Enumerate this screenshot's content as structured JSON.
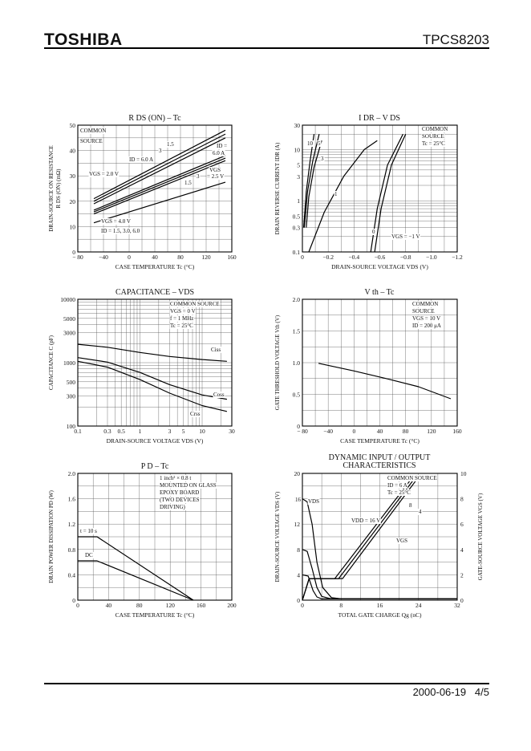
{
  "header": {
    "brand": "TOSHIBA",
    "part_number": "TPCS8203"
  },
  "footer": {
    "date": "2000-06-19",
    "page": "4/5"
  },
  "chart_data": [
    {
      "id": "rds",
      "type": "line",
      "title": "R DS (ON) – Tc",
      "xlabel": "CASE TEMPERATURE  Tc  (°C)",
      "ylabel": [
        "DRAIN-SOURCE ON RESISTANCE",
        "R DS (ON)  (mΩ)"
      ],
      "xlim": [
        -80,
        160
      ],
      "ylim": [
        0,
        50
      ],
      "xticks": [
        -80,
        -40,
        0,
        40,
        80,
        120,
        160
      ],
      "xtick_labels": [
        "− 80",
        "−40",
        "0",
        "40",
        "80",
        "120",
        "160"
      ],
      "yticks": [
        0,
        10,
        20,
        30,
        40,
        50
      ],
      "ytick_labels": [
        "0",
        "10",
        "20",
        "30",
        "40",
        "50"
      ],
      "series": [
        {
          "name": "VGS = 2.0 V, ID = 6.0 A",
          "x": [
            -55,
            150
          ],
          "y": [
            21,
            48
          ]
        },
        {
          "name": "VGS = 2.0 V, ID = 3",
          "x": [
            -55,
            150
          ],
          "y": [
            20,
            46.5
          ]
        },
        {
          "name": "VGS = 2.0 V, ID = 1.5",
          "x": [
            -55,
            150
          ],
          "y": [
            19,
            45
          ]
        },
        {
          "name": "VGS = 2.5 V, ID = 6.0 A",
          "x": [
            -55,
            150
          ],
          "y": [
            16.5,
            38
          ]
        },
        {
          "name": "VGS = 2.5 V, ID = 3",
          "x": [
            -55,
            150
          ],
          "y": [
            15.8,
            37
          ]
        },
        {
          "name": "VGS = 2.5 V, ID = 1.5",
          "x": [
            -55,
            150
          ],
          "y": [
            15,
            36
          ]
        },
        {
          "name": "VGS = 4.0 V",
          "x": [
            -55,
            150
          ],
          "y": [
            11.5,
            27.5
          ]
        }
      ],
      "annotations": [
        "COMMON",
        "SOURCE",
        "1.5",
        "3",
        "ID = 6.0 A",
        "ID =",
        "6.0 A",
        "3",
        "1.5",
        "VGS = 2.0 V",
        "VGS",
        "= 2.5 V",
        "VGS = 4.0 V",
        "ID = 1.5, 3.0, 6.0"
      ]
    },
    {
      "id": "idr",
      "type": "line",
      "title": "I DR – V DS",
      "xlabel": "DRAIN-SOURCE VOLTAGE  VDS  (V)",
      "ylabel": [
        "DRAIN REVERSE CURRENT  IDR  (A)"
      ],
      "xlim": [
        0,
        -1.2
      ],
      "ylim": [
        0.1,
        30
      ],
      "yscale": "log",
      "xticks": [
        0,
        -0.2,
        -0.4,
        -0.6,
        -0.8,
        -1.0,
        -1.2
      ],
      "xtick_labels": [
        "0",
        "−0.2",
        "−0.4",
        "−0.6",
        "−0.8",
        "−1.0",
        "−1.2"
      ],
      "yticks": [
        0.1,
        0.3,
        0.5,
        1,
        3,
        5,
        10,
        30
      ],
      "ytick_labels": [
        "0.1",
        "0.3",
        "0.5",
        "1",
        "3",
        "5",
        "10",
        "30"
      ],
      "series": [
        {
          "name": "VGS = 10 V",
          "x": [
            -0.01,
            -0.03,
            -0.06,
            -0.09
          ],
          "y": [
            0.3,
            1.5,
            6,
            20
          ]
        },
        {
          "name": "VGS = 5 V",
          "x": [
            -0.015,
            -0.04,
            -0.08,
            -0.13
          ],
          "y": [
            0.3,
            1.5,
            6,
            20
          ]
        },
        {
          "name": "VGS = 3 V",
          "x": [
            -0.03,
            -0.05,
            -0.09,
            -0.15
          ],
          "y": [
            0.3,
            1.2,
            4.5,
            15
          ]
        },
        {
          "name": "VGS = 1 V",
          "x": [
            -0.05,
            -0.17,
            -0.32,
            -0.48,
            -0.58
          ],
          "y": [
            0.1,
            0.6,
            3,
            10,
            15
          ]
        },
        {
          "name": "VGS = 0 V",
          "x": [
            -0.53,
            -0.58,
            -0.66,
            -0.78
          ],
          "y": [
            0.1,
            0.7,
            5,
            20
          ]
        },
        {
          "name": "VGS = -1 V",
          "x": [
            -0.56,
            -0.61,
            -0.69,
            -0.8
          ],
          "y": [
            0.1,
            0.7,
            5,
            20
          ]
        }
      ],
      "annotations": [
        "COMMON",
        "SOURCE",
        "Tc = 25°C",
        "10",
        "5",
        "3",
        "1",
        "0",
        "VGS = −1 V"
      ]
    },
    {
      "id": "cap",
      "type": "line",
      "title": "CAPACITANCE – VDS",
      "xlabel": "DRAIN-SOURCE VOLTAGE  VDS  (V)",
      "ylabel": [
        "CAPACITANCE  C  (pF)"
      ],
      "xlim": [
        0.1,
        30
      ],
      "ylim": [
        100,
        10000
      ],
      "xscale": "log",
      "yscale": "log",
      "xticks": [
        0.1,
        0.3,
        0.5,
        1,
        3,
        5,
        10,
        30
      ],
      "xtick_labels": [
        "0.1",
        "0.3",
        "0.5",
        "1",
        "3",
        "5",
        "10",
        "30"
      ],
      "yticks": [
        100,
        300,
        500,
        1000,
        3000,
        5000,
        10000
      ],
      "ytick_labels": [
        "100",
        "300",
        "500",
        "1000",
        "3000",
        "5000",
        "10000"
      ],
      "series": [
        {
          "name": "Ciss",
          "x": [
            0.1,
            0.3,
            1,
            3,
            10,
            25
          ],
          "y": [
            1950,
            1750,
            1450,
            1250,
            1120,
            1050
          ]
        },
        {
          "name": "Coss",
          "x": [
            0.1,
            0.3,
            1,
            3,
            10,
            25
          ],
          "y": [
            1200,
            1020,
            700,
            450,
            310,
            265
          ]
        },
        {
          "name": "Crss",
          "x": [
            0.1,
            0.3,
            1,
            3,
            10,
            25
          ],
          "y": [
            1050,
            850,
            540,
            330,
            210,
            170
          ]
        }
      ],
      "annotations": [
        "COMMON SOURCE",
        "VGS = 0 V",
        "f = 1 MHz",
        "Tc = 25°C",
        "Ciss",
        "Coss",
        "Crss"
      ]
    },
    {
      "id": "vth",
      "type": "line",
      "title": "V th – Tc",
      "xlabel": "CASE TEMPERATURE  Tc  (°C)",
      "ylabel": [
        "GATE THRESHOLD VOLTAGE  Vth  (V)"
      ],
      "xlim": [
        -80,
        160
      ],
      "ylim": [
        0,
        2.0
      ],
      "xticks": [
        -80,
        -40,
        0,
        40,
        80,
        120,
        160
      ],
      "xtick_labels": [
        "− 80",
        "−40",
        "0",
        "40",
        "80",
        "120",
        "160"
      ],
      "yticks": [
        0,
        0.5,
        1.0,
        1.5,
        2.0
      ],
      "ytick_labels": [
        "0",
        "0.5",
        "1.0",
        "1.5",
        "2.0"
      ],
      "series": [
        {
          "name": "Vth",
          "x": [
            -55,
            0,
            50,
            100,
            150
          ],
          "y": [
            0.99,
            0.87,
            0.75,
            0.62,
            0.43
          ]
        }
      ],
      "annotations": [
        "COMMON",
        "SOURCE",
        "VGS = 10 V",
        "ID = 200 μA"
      ]
    },
    {
      "id": "pd",
      "type": "line",
      "title": "P D – Tc",
      "xlabel": "CASE TEMPERATURE  Tc  (°C)",
      "ylabel": [
        "DRAIN POWER DISSIPATION  PD  (W)"
      ],
      "xlim": [
        0,
        200
      ],
      "ylim": [
        0,
        2.0
      ],
      "xticks": [
        0,
        40,
        80,
        120,
        160,
        200
      ],
      "xtick_labels": [
        "0",
        "40",
        "80",
        "120",
        "160",
        "200"
      ],
      "yticks": [
        0,
        0.4,
        0.8,
        1.2,
        1.6,
        2.0
      ],
      "ytick_labels": [
        "0",
        "0.4",
        "0.8",
        "1.2",
        "1.6",
        "2.0"
      ],
      "series": [
        {
          "name": "t = 10 s",
          "x": [
            0,
            25,
            150
          ],
          "y": [
            1.0,
            1.0,
            0
          ]
        },
        {
          "name": "DC",
          "x": [
            0,
            25,
            150
          ],
          "y": [
            0.62,
            0.62,
            0
          ]
        }
      ],
      "annotations": [
        "1 inch² × 0.8 t",
        "MOUNTED ON GLASS",
        "EPOXY BOARD",
        "(TWO DEVICES",
        "DRIVING)",
        "t = 10 s",
        "DC"
      ]
    },
    {
      "id": "qg",
      "type": "line",
      "title": [
        "DYNAMIC INPUT / OUTPUT",
        "CHARACTERISTICS"
      ],
      "xlabel": "TOTAL GATE CHARGE  Qg  (nC)",
      "ylabel": [
        "DRAIN-SOURCE VOLTAGE  VDS  (V)"
      ],
      "y2label": [
        "GATE-SOURCE VOLTAGE  VGS  (V)"
      ],
      "xlim": [
        0,
        32
      ],
      "ylim": [
        0,
        20
      ],
      "y2lim": [
        0,
        10
      ],
      "xticks": [
        0,
        8,
        16,
        24,
        32
      ],
      "xtick_labels": [
        "0",
        "8",
        "16",
        "24",
        "32"
      ],
      "yticks": [
        0,
        4,
        8,
        12,
        16,
        20
      ],
      "ytick_labels": [
        "0",
        "4",
        "8",
        "12",
        "16",
        "20"
      ],
      "y2ticks": [
        0,
        2,
        4,
        6,
        8,
        10
      ],
      "y2tick_labels": [
        "0",
        "2",
        "4",
        "6",
        "8",
        "10"
      ],
      "series": [
        {
          "name": "VDS (VDD = 16 V)",
          "x": [
            0,
            1,
            2,
            3,
            4.2,
            6,
            8,
            32
          ],
          "y": [
            16,
            15.5,
            12,
            6,
            2,
            0.4,
            0.2,
            0.2
          ]
        },
        {
          "name": "VDS (VDD = 8 V)",
          "x": [
            0,
            1,
            2,
            3,
            4,
            6,
            32
          ],
          "y": [
            8,
            7.7,
            5,
            2,
            0.6,
            0.2,
            0.2
          ]
        },
        {
          "name": "VDS (VDD = 4 V)",
          "x": [
            0,
            1.2,
            2.2,
            3,
            4,
            32
          ],
          "y": [
            4,
            3.8,
            1.5,
            0.5,
            0.2,
            0.2
          ]
        },
        {
          "name": "VGS (VDD = 16 V)",
          "x": [
            0,
            1.4,
            8.3,
            23.8
          ],
          "y": [
            0,
            3.4,
            3.4,
            19.2
          ]
        },
        {
          "name": "VGS (VDD = 8 V)",
          "x": [
            0,
            1.4,
            7.5,
            23.2
          ],
          "y": [
            0,
            3.4,
            3.4,
            19.2
          ]
        },
        {
          "name": "VGS (VDD = 4 V)",
          "x": [
            0,
            1.4,
            6.7,
            22.6
          ],
          "y": [
            0,
            3.4,
            3.4,
            19.2
          ]
        }
      ],
      "annotations": [
        "COMMON SOURCE",
        "ID = 6 A",
        "Tc = 25°C",
        "VDD = 16 V",
        "8",
        "4",
        "16",
        "VDS",
        "VGS"
      ]
    }
  ]
}
